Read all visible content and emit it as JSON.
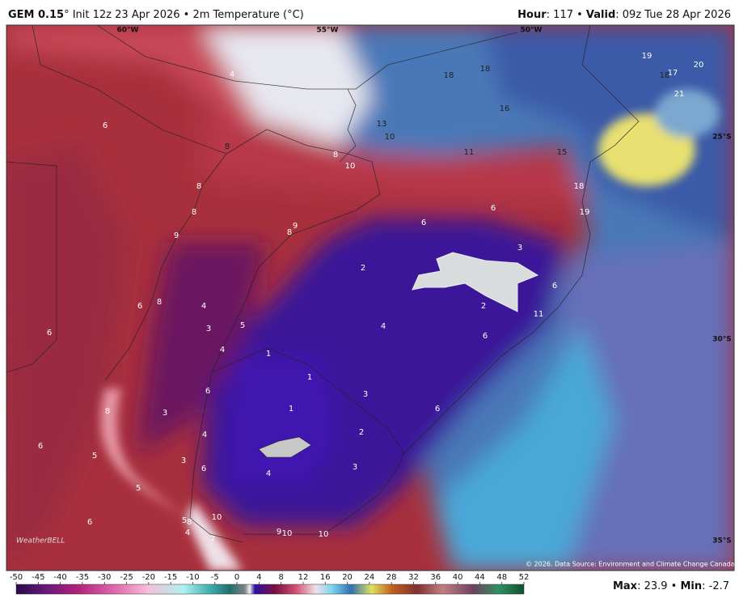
{
  "header": {
    "model": "GEM 0.15",
    "init": "° Init 12z 23 Apr 2026 • 2m Temperature (°C)",
    "hour_label": "Hour",
    "hour_value": ": 117 • ",
    "valid_label": "Valid",
    "valid_value": ": 09z Tue 28 Apr 2026"
  },
  "map": {
    "longitude_labels": [
      "60°W",
      "55°W",
      "50°W"
    ],
    "latitude_labels": [
      "25°S",
      "30°S",
      "35°S"
    ],
    "temperature_labels": [
      4,
      6,
      18,
      18,
      19,
      20,
      18,
      17,
      21,
      16,
      13,
      10,
      11,
      15,
      8,
      8,
      10,
      18,
      19,
      8,
      8,
      6,
      6,
      9,
      8,
      9,
      3,
      2,
      6,
      2,
      11,
      6,
      8,
      4,
      3,
      5,
      4,
      6,
      6,
      4,
      1,
      1,
      3,
      6,
      1,
      6,
      8,
      3,
      2,
      4,
      6,
      5,
      3,
      6,
      4,
      3,
      5,
      10,
      5,
      8,
      6,
      4,
      9,
      10,
      10,
      7
    ],
    "logo": "WeatherBELL",
    "copyright": "© 2026. Data Source: Environment and Climate Change Canada."
  },
  "colorbar": {
    "ticks": [
      -50,
      -45,
      -40,
      -35,
      -30,
      -25,
      -20,
      -15,
      -10,
      -5,
      0,
      4,
      8,
      12,
      16,
      20,
      24,
      28,
      32,
      36,
      40,
      44,
      48,
      52
    ]
  },
  "footer": {
    "max_label": "Max",
    "max_value": ": 23.9 • ",
    "min_label": "Min",
    "min_value": ": -2.7"
  }
}
